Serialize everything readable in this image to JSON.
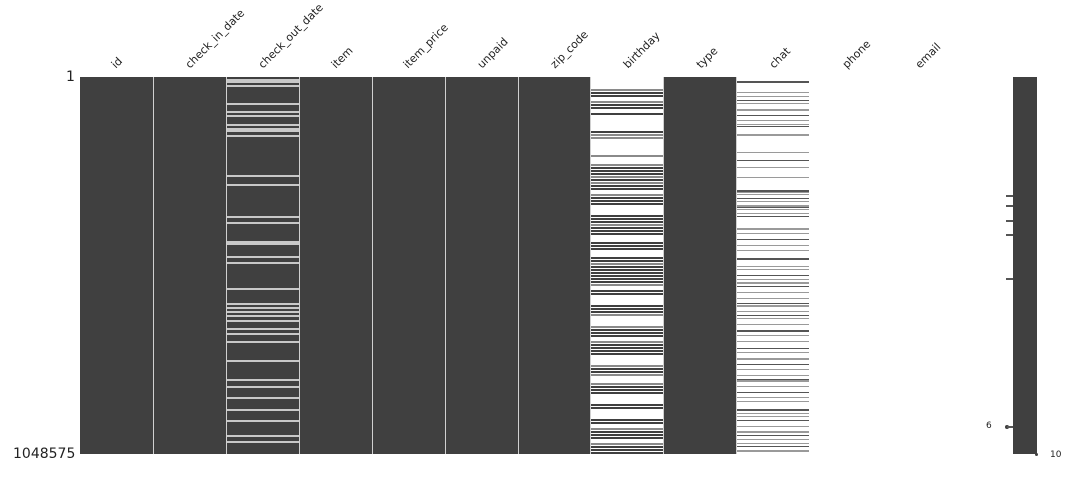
{
  "chart_data": {
    "type": "heatmap",
    "title": "",
    "description": "Missing-value matrix (missingno style): dark = present, white = missing",
    "columns": [
      "id",
      "check_in_date",
      "check_out_date",
      "item",
      "item_price",
      "unpaid",
      "zip_code",
      "birthday",
      "type",
      "chat",
      "phone",
      "email"
    ],
    "row_range": [
      1,
      1048575
    ],
    "y_tick_labels": [
      "1",
      "1048575"
    ],
    "column_status": {
      "id": "complete",
      "check_in_date": "complete",
      "check_out_date": "mostly_complete",
      "item": "complete",
      "item_price": "complete",
      "unpaid": "complete",
      "zip_code": "complete",
      "birthday": "partial",
      "type": "complete",
      "chat": "mostly_missing",
      "phone": "all_missing",
      "email": "all_missing"
    },
    "sparkline": {
      "min_label": "6",
      "max_label": "10",
      "min_value": 6,
      "max_value": 10
    },
    "colors": {
      "present": "#404040",
      "missing": "#ffffff",
      "separator": "#d0d0d0"
    }
  },
  "labels": {
    "cols": [
      "id",
      "check_in_date",
      "check_out_date",
      "item",
      "item_price",
      "unpaid",
      "zip_code",
      "birthday",
      "type",
      "chat",
      "phone",
      "email"
    ],
    "y_top": "1",
    "y_bottom": "1048575",
    "spark_min": "6",
    "spark_max": "10"
  },
  "stripes": {
    "check_out_date": [
      0.005,
      0.01,
      0.02,
      0.07,
      0.09,
      0.1,
      0.125,
      0.135,
      0.14,
      0.155,
      0.26,
      0.285,
      0.37,
      0.385,
      0.435,
      0.44,
      0.475,
      0.49,
      0.56,
      0.6,
      0.6,
      0.61,
      0.62,
      0.63,
      0.645,
      0.665,
      0.68,
      0.7,
      0.75,
      0.8,
      0.82,
      0.85,
      0.88,
      0.91,
      0.95,
      0.965
    ],
    "birthday_white": [
      [
        0,
        0.03
      ],
      [
        0.05,
        0.06
      ],
      [
        0.08,
        0.09
      ],
      [
        0.1,
        0.14
      ],
      [
        0.16,
        0.2
      ],
      [
        0.21,
        0.23
      ],
      [
        0.3,
        0.31
      ],
      [
        0.34,
        0.36
      ],
      [
        0.42,
        0.43
      ],
      [
        0.46,
        0.47
      ],
      [
        0.55,
        0.56
      ],
      [
        0.58,
        0.6
      ],
      [
        0.63,
        0.66
      ],
      [
        0.69,
        0.7
      ],
      [
        0.74,
        0.76
      ],
      [
        0.79,
        0.81
      ],
      [
        0.84,
        0.86
      ],
      [
        0.88,
        0.9
      ],
      [
        0.92,
        0.93
      ],
      [
        0.96,
        0.97
      ]
    ],
    "birthday_dark": [
      0.045,
      0.075,
      0.095,
      0.145,
      0.2,
      0.24,
      0.25,
      0.27,
      0.29,
      0.32,
      0.33,
      0.37,
      0.38,
      0.4,
      0.41,
      0.44,
      0.45,
      0.48,
      0.5,
      0.51,
      0.52,
      0.53,
      0.54,
      0.57,
      0.61,
      0.62,
      0.67,
      0.68,
      0.71,
      0.72,
      0.73,
      0.77,
      0.78,
      0.82,
      0.83,
      0.87,
      0.91,
      0.94,
      0.95,
      0.98,
      0.99
    ],
    "chat": [
      0.01,
      0.04,
      0.05,
      0.06,
      0.07,
      0.085,
      0.1,
      0.115,
      0.125,
      0.13,
      0.15,
      0.2,
      0.22,
      0.24,
      0.265,
      0.3,
      0.305,
      0.31,
      0.32,
      0.33,
      0.34,
      0.345,
      0.35,
      0.36,
      0.37,
      0.4,
      0.415,
      0.43,
      0.445,
      0.46,
      0.48,
      0.5,
      0.51,
      0.525,
      0.535,
      0.545,
      0.555,
      0.57,
      0.585,
      0.6,
      0.605,
      0.62,
      0.63,
      0.64,
      0.655,
      0.67,
      0.685,
      0.7,
      0.72,
      0.73,
      0.745,
      0.76,
      0.775,
      0.79,
      0.8,
      0.805,
      0.82,
      0.835,
      0.85,
      0.86,
      0.88,
      0.89,
      0.9,
      0.91,
      0.925,
      0.94,
      0.95,
      0.96,
      0.97,
      0.98,
      0.99
    ],
    "spark_ticks": [
      195,
      205,
      220,
      234,
      278
    ]
  }
}
